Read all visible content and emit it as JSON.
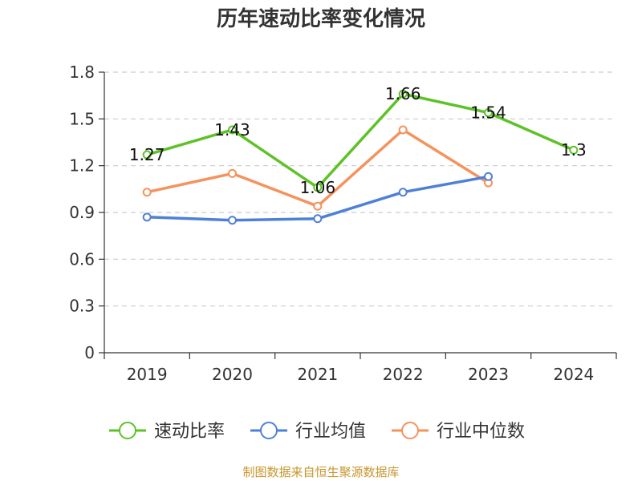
{
  "chart_data": {
    "type": "line",
    "title": "历年速动比率变化情况",
    "categories": [
      "2019",
      "2020",
      "2021",
      "2022",
      "2023",
      "2024"
    ],
    "ylim": [
      0,
      1.8
    ],
    "yticks": [
      "0",
      "0.3",
      "0.6",
      "0.9",
      "1.2",
      "1.5",
      "1.8"
    ],
    "grid": true,
    "legend_position": "bottom",
    "series": [
      {
        "name": "速动比率",
        "color": "#5ec227",
        "values": [
          1.27,
          1.43,
          1.06,
          1.66,
          1.54,
          1.3
        ],
        "labels": [
          "1.27",
          "1.43",
          "1.06",
          "1.66",
          "1.54",
          "1.3"
        ]
      },
      {
        "name": "行业均值",
        "color": "#4f80d8",
        "values": [
          0.87,
          0.85,
          0.86,
          1.03,
          1.13,
          null
        ]
      },
      {
        "name": "行业中位数",
        "color": "#f4935e",
        "values": [
          1.03,
          1.15,
          0.94,
          1.43,
          1.09,
          null
        ]
      }
    ]
  },
  "source": {
    "text": "制图数据来自恒生聚源数据库",
    "color": "#c8962e"
  }
}
